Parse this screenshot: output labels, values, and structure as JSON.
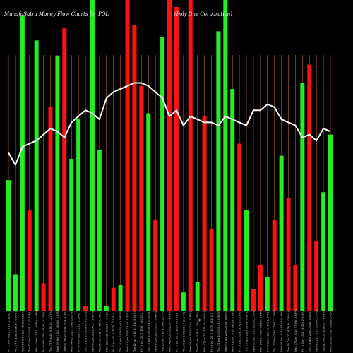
{
  "chart_data": {
    "type": "bar",
    "title": "MunafaSutra  Money Flow  Charts for POL",
    "subtitle": "(Poly One  Corporation)",
    "axis_mark": "$",
    "grid": true,
    "ylim": [
      0,
      100
    ],
    "categories": [
      "Fri 15 Feb 2019",
      "Thu 14 Feb 2019",
      "Wed 13 Feb 2019",
      "Tue 12 Feb 2019",
      "Mon 11 Feb 2019",
      "Fri 08 Feb 2019",
      "Thu 07 Feb 2019",
      "Wed 06 Feb 2019",
      "Tue 05 Feb 2019",
      "Mon 04 Feb 2019",
      "Fri 01 Feb 2019",
      "Thu 31 Jan 2019",
      "Wed 30 Jan 2019",
      "Tue 29 Jan 2019",
      "Mon 28 Jan 2019",
      "Fri 25 Jan 2019",
      "Thu 24 Jan 2019",
      "Wed 23 Jan 2019",
      "Tue 22 Jan 2019",
      "Fri 18 Jan 2019",
      "Thu 17 Jan 2019",
      "Wed 16 Jan 2019",
      "Tue 15 Jan 2019",
      "Mon 14 Jan 2019",
      "Fri 11 Jan 2019",
      "Thu 10 Jan 2019",
      "Wed 09 Jan 2019",
      "Tue 08 Jan 2019",
      "Mon 07 Jan 2019",
      "Fri 04 Jan 2019",
      "Thu 03 Jan 2019",
      "Wed 02 Jan 2019",
      "Mon 31 Dec 2018",
      "Fri 28 Dec 2018",
      "Thu 27 Dec 2018",
      "Wed 26 Dec 2018",
      "Mon 24 Dec 2018",
      "Fri 21 Dec 2018",
      "Thu 20 Dec 2018",
      "Wed 19 Dec 2018",
      "Tue 18 Dec 2018",
      "Mon 17 Dec 2018",
      "Fri 14 Dec 2018",
      "Thu 13 Dec 2018",
      "Wed 12 Dec 2018",
      "Tue 11 Dec 2018",
      "Mon 10 Dec 2018"
    ],
    "tick_labels": [
      "Fri 15 Feb 2019 37.16 (2.21%)",
      "Thu 14 Feb 2019 36.36 (0.83%)",
      "Wed 13 Feb 2019 36.06 (1.52%)",
      "Tue 12 Feb 2019 35.52 (2.78%)",
      "Mon 11 Feb 2019 34.56 (-0.98%)",
      "Fri 08 Feb 2019 34.90 (-0.71%)",
      "Thu 07 Feb 2019 35.15 (-2.47%)",
      "Wed 06 Feb 2019 36.04 (-0.69%)",
      "Tue 05 Feb 2019 36.29 (1.37%)",
      "Mon 04 Feb 2019 35.80 (1.67%)",
      "Fri 01 Feb 2019 35.21 (3.56%)",
      "Thu 31 Jan 2019 34.00 (-1.76%)",
      "Wed 30 Jan 2019 34.61 (2.85%)",
      "Tue 29 Jan 2019 33.65 (0.33%)",
      "Mon 28 Jan 2019 33.54 (-0.71%)",
      "Fri 25 Jan 2019 33.78 (2.18%)",
      "Thu 24 Jan 2019 33.06 (-0.63%)",
      "Wed 23 Jan 2019 33.27 (1.40%)",
      "Tue 22 Jan 2019 32.81 (-2.55%)",
      "Fri 18 Jan 2019 33.67 (3.03%)",
      "Thu 17 Jan 2019 32.68 (0.52%)",
      "Wed 16 Jan 2019 32.51 (0.84%)",
      "Tue 15 Jan 2019 32.24 (-1.22%)",
      "Mon 14 Jan 2019 32.64 (-1.69%)",
      "Fri 11 Jan 2019 33.20 (0.79%)",
      "Thu 10 Jan 2019 32.94 (2.14%)",
      "Wed 09 Jan 2019 32.25 (2.74%)",
      "Tue 08 Jan 2019 31.39 (1.07%)",
      "Mon 07 Jan 2019 31.06 (0.91%)",
      "Fri 04 Jan 2019 30.78 (4.41%)",
      "Thu 03 Jan 2019 29.48 (-1.53%)",
      "Wed 02 Jan 2019 29.94 (4.69%)",
      "Mon 31 Dec 2018 28.60 (-0.38%)",
      "Fri 28 Dec 2018 28.71 (-0.69%)",
      "Thu 27 Dec 2018 28.91 (3.17%)",
      "Wed 26 Dec 2018 28.02 (5.62%)",
      "Mon 24 Dec 2018 26.53 (-2.96%)",
      "Fri 21 Dec 2018 27.34 (-1.09%)",
      "Thu 20 Dec 2018 27.64 (-2.78%)",
      "Wed 19 Dec 2018 28.43 (0.96%)",
      "Tue 18 Dec 2018 28.16 (0.61%)",
      "Mon 17 Dec 2018 27.99 (-2.88%)",
      "Fri 14 Dec 2018 28.82 (-2.04%)",
      "Thu 13 Dec 2018 29.42 (0.96%)",
      "Wed 12 Dec 2018 29.14 (1.57%)",
      "Tue 11 Dec 2018 28.69 (-1.68%)",
      "Mon 10 Dec 2018 29.18 (0.00%)"
    ],
    "bar_values": [
      43,
      12,
      97,
      33,
      89,
      9,
      67,
      84,
      93,
      50,
      63,
      1.5,
      103,
      53,
      1.5,
      7.5,
      8.5,
      112,
      94,
      74,
      65,
      30,
      90,
      113,
      100,
      6,
      108,
      9.5,
      64,
      27,
      92,
      103,
      73,
      55,
      33,
      7,
      15,
      11,
      30,
      51,
      37,
      15,
      75,
      81,
      23,
      39,
      58
    ],
    "bar_colors": [
      "green",
      "green",
      "green",
      "red",
      "green",
      "red",
      "red",
      "green",
      "red",
      "green",
      "green",
      "red",
      "green",
      "green",
      "green",
      "red",
      "green",
      "red",
      "red",
      "red",
      "green",
      "red",
      "green",
      "red",
      "red",
      "green",
      "red",
      "green",
      "red",
      "red",
      "green",
      "green",
      "green",
      "red",
      "green",
      "red",
      "red",
      "green",
      "red",
      "green",
      "red",
      "red",
      "green",
      "red",
      "red",
      "green",
      "green"
    ],
    "line_values": [
      52,
      48,
      54,
      55,
      56,
      58,
      60,
      59,
      57,
      62,
      64,
      66,
      65,
      63,
      70,
      72,
      73,
      74,
      75,
      75,
      74,
      72,
      70,
      64,
      66,
      61,
      64,
      63,
      62,
      62,
      61,
      64,
      63,
      62,
      61,
      66,
      66,
      68,
      67,
      63,
      62,
      61,
      57,
      58,
      56,
      60,
      59
    ],
    "colors": {
      "background": "#000000",
      "green": "#22ee22",
      "red": "#ff1111",
      "grid": "#d2781e",
      "line": "#ffffff"
    }
  }
}
